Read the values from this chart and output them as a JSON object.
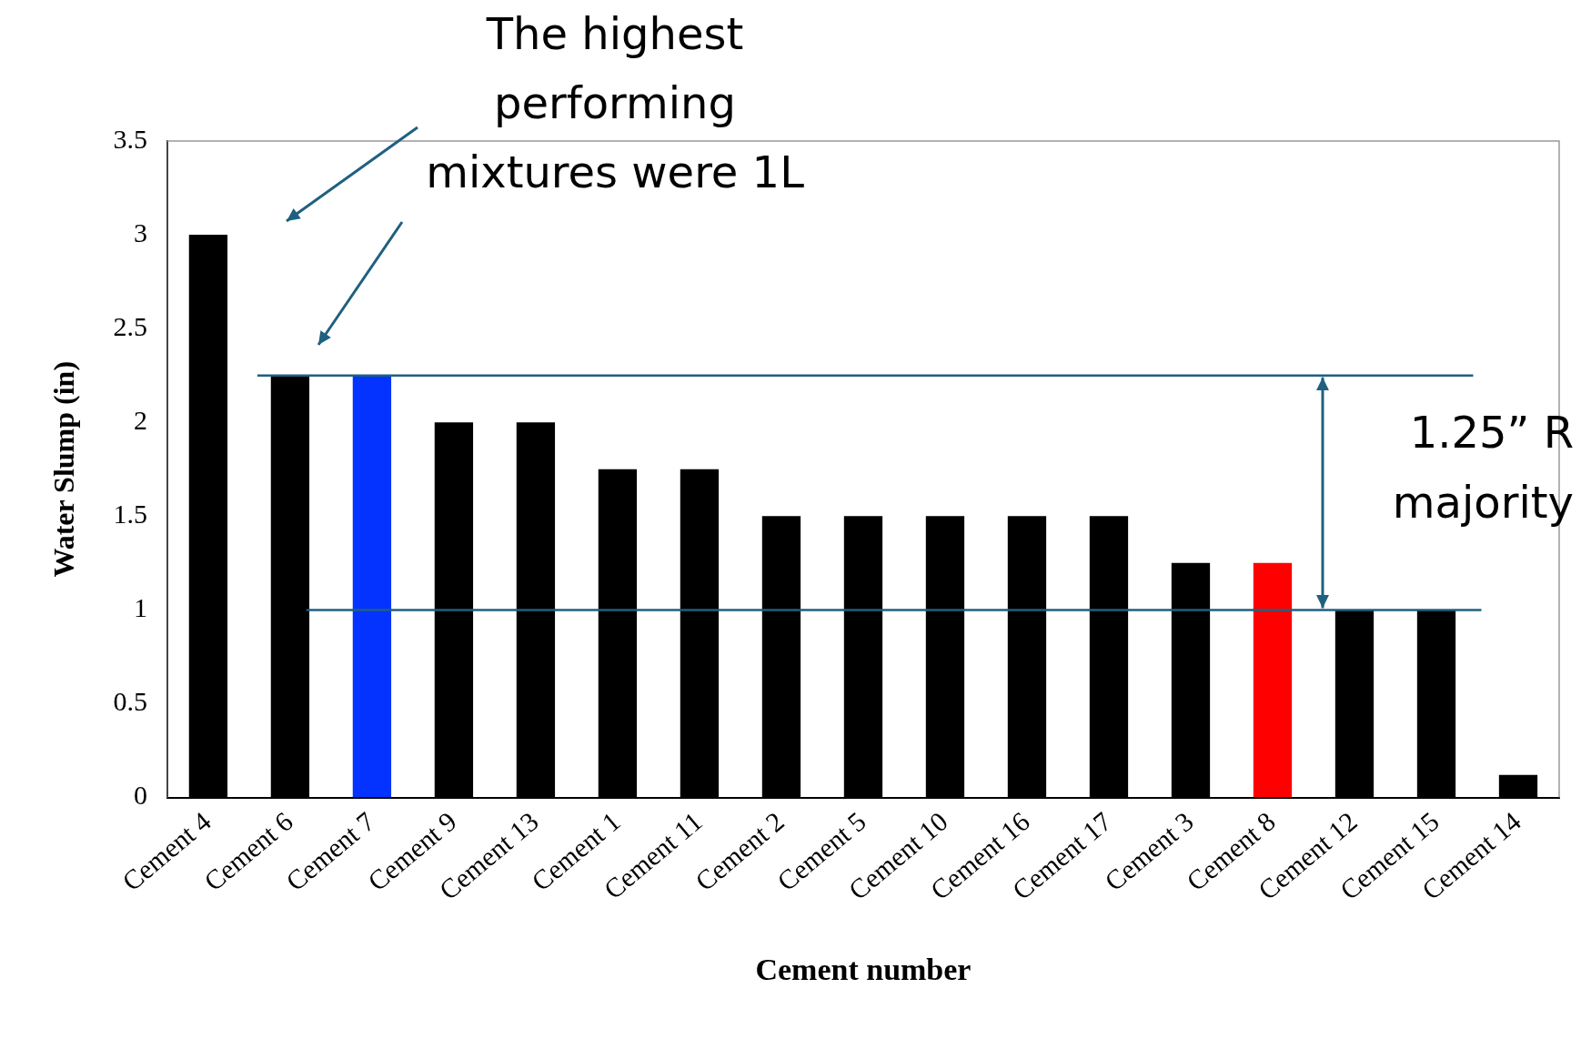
{
  "chart_data": {
    "type": "bar",
    "xlabel": "Cement number",
    "ylabel": "Water Slump (in)",
    "categories": [
      "Cement 4",
      "Cement 6",
      "Cement 7",
      "Cement 9",
      "Cement 13",
      "Cement 1",
      "Cement 11",
      "Cement 2",
      "Cement 5",
      "Cement 10",
      "Cement 16",
      "Cement 17",
      "Cement 3",
      "Cement 8",
      "Cement 12",
      "Cement 15",
      "Cement 14"
    ],
    "values": [
      3,
      2.25,
      2.25,
      2,
      2,
      1.75,
      1.75,
      1.5,
      1.5,
      1.5,
      1.5,
      1.5,
      1.25,
      1.25,
      1,
      1,
      0.12
    ],
    "colors": [
      "#000000",
      "#000000",
      "#0433ff",
      "#000000",
      "#000000",
      "#000000",
      "#000000",
      "#000000",
      "#000000",
      "#000000",
      "#000000",
      "#000000",
      "#000000",
      "#ff0000",
      "#000000",
      "#000000",
      "#000000"
    ],
    "ylim": [
      0,
      3.5
    ],
    "yticks": [
      0,
      0.5,
      1,
      1.5,
      2,
      2.5,
      3,
      3.5
    ],
    "grid": false,
    "legend": false,
    "ref_lines": [
      {
        "axis": "y",
        "value": 2.25,
        "color": "#1f6080"
      },
      {
        "axis": "y",
        "value": 1,
        "color": "#1f6080"
      }
    ],
    "annotations": [
      "The highest performing mixtures were 1L",
      "1.25” R",
      "majority"
    ]
  }
}
